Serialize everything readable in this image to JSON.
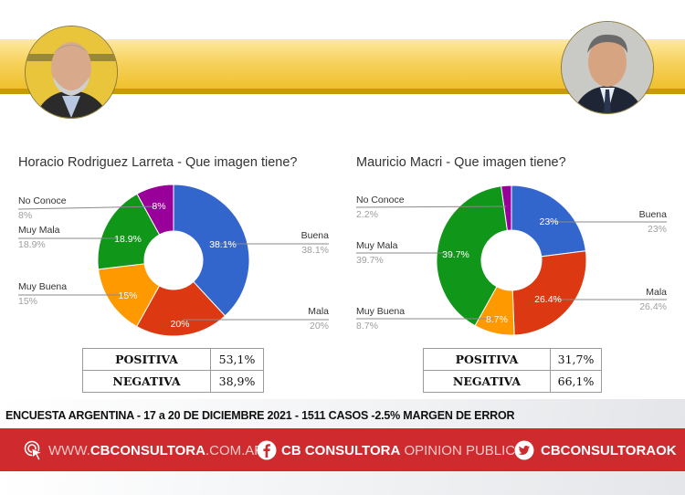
{
  "header": {
    "left_photo": "larreta-portrait",
    "right_photo": "macri-portrait",
    "band_color": "#f3c94a"
  },
  "charts": {
    "left": {
      "title": "Horacio Rodriguez Larreta - Que imagen tiene?",
      "labels": {
        "no_conoce": {
          "name": "No Conoce",
          "value": "8%"
        },
        "muy_mala": {
          "name": "Muy Mala",
          "value": "18.9%"
        },
        "muy_buena": {
          "name": "Muy Buena",
          "value": "15%"
        },
        "buena": {
          "name": "Buena",
          "value": "38.1%"
        },
        "mala": {
          "name": "Mala",
          "value": "20%"
        }
      },
      "summary": {
        "positiva_label": "POSITIVA",
        "positiva_value": "53,1%",
        "negativa_label": "NEGATIVA",
        "negativa_value": "38,9%"
      }
    },
    "right": {
      "title": "Mauricio Macri - Que imagen tiene?",
      "labels": {
        "no_conoce": {
          "name": "No Conoce",
          "value": "2.2%"
        },
        "muy_mala": {
          "name": "Muy Mala",
          "value": "39.7%"
        },
        "muy_buena": {
          "name": "Muy Buena",
          "value": "8.7%"
        },
        "buena": {
          "name": "Buena",
          "value": "23%"
        },
        "mala": {
          "name": "Mala",
          "value": "26.4%"
        }
      },
      "summary": {
        "positiva_label": "POSITIVA",
        "positiva_value": "31,7%",
        "negativa_label": "NEGATIVA",
        "negativa_value": "66,1%"
      }
    }
  },
  "chart_data": [
    {
      "type": "pie",
      "donut": true,
      "title": "Horacio Rodriguez Larreta - Que imagen tiene?",
      "categories": [
        "Buena",
        "Mala",
        "Muy Buena",
        "Muy Mala",
        "No Conoce"
      ],
      "values": [
        38.1,
        20,
        15,
        18.9,
        8
      ],
      "colors": [
        "#3366cc",
        "#dc3912",
        "#ff9900",
        "#109618",
        "#990099"
      ],
      "summary": {
        "Positiva": 53.1,
        "Negativa": 38.9
      }
    },
    {
      "type": "pie",
      "donut": true,
      "title": "Mauricio Macri - Que imagen tiene?",
      "categories": [
        "Buena",
        "Mala",
        "Muy Buena",
        "Muy Mala",
        "No Conoce"
      ],
      "values": [
        23,
        26.4,
        8.7,
        39.7,
        2.2
      ],
      "colors": [
        "#3366cc",
        "#dc3912",
        "#ff9900",
        "#109618",
        "#990099"
      ],
      "summary": {
        "Positiva": 31.7,
        "Negativa": 66.1
      }
    }
  ],
  "footer": {
    "survey_text": "ENCUESTA ARGENTINA - 17 a 20 DE DICIEMBRE 2021 - 1511 CASOS -2.5% MARGEN DE ERROR",
    "web_prefix": "WWW.",
    "web_bold": "CBCONSULTORA",
    "web_suffix": ".COM.AR",
    "fb_bold": "CB CONSULTORA",
    "fb_thin": " OPINION PUBLICA",
    "twitter": "CBCONSULTORAOK",
    "bar_color": "#cf2a2d"
  }
}
